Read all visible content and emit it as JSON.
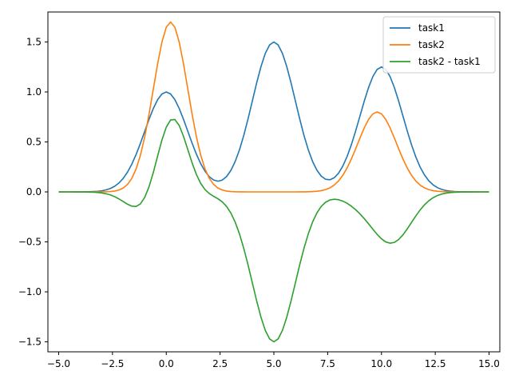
{
  "chart_data": {
    "type": "line",
    "title": "",
    "xlabel": "",
    "ylabel": "",
    "xlim": [
      -5.5,
      15.5
    ],
    "ylim": [
      -1.6,
      1.8
    ],
    "xticks": [
      -5.0,
      -2.5,
      0.0,
      2.5,
      5.0,
      7.5,
      10.0,
      12.5,
      15.0
    ],
    "xtick_labels": [
      "−5.0",
      "−2.5",
      "0.0",
      "2.5",
      "5.0",
      "7.5",
      "10.0",
      "12.5",
      "15.0"
    ],
    "yticks": [
      -1.5,
      -1.0,
      -0.5,
      0.0,
      0.5,
      1.0,
      1.5
    ],
    "ytick_labels": [
      "−1.5",
      "−1.0",
      "−0.5",
      "0.0",
      "0.5",
      "1.0",
      "1.5"
    ],
    "grid": false,
    "legend_position": "top-right",
    "x_sample": {
      "start": -5.0,
      "end": 15.0,
      "count": 101
    },
    "series": [
      {
        "name": "task1",
        "color": "#1f77b4",
        "components": [
          {
            "amplitude": 1.0,
            "center": 0.0,
            "width": 1.0
          },
          {
            "amplitude": 1.5,
            "center": 5.0,
            "width": 1.0
          },
          {
            "amplitude": 1.25,
            "center": 10.0,
            "width": 1.0
          }
        ]
      },
      {
        "name": "task2",
        "color": "#ff7f0e",
        "components": [
          {
            "amplitude": 1.7,
            "center": 0.2,
            "width": 0.8
          },
          {
            "amplitude": 0.8,
            "center": 9.8,
            "width": 0.9
          }
        ]
      },
      {
        "name": "task2 - task1",
        "color": "#2ca02c",
        "difference_of": [
          "task2",
          "task1"
        ]
      }
    ]
  }
}
